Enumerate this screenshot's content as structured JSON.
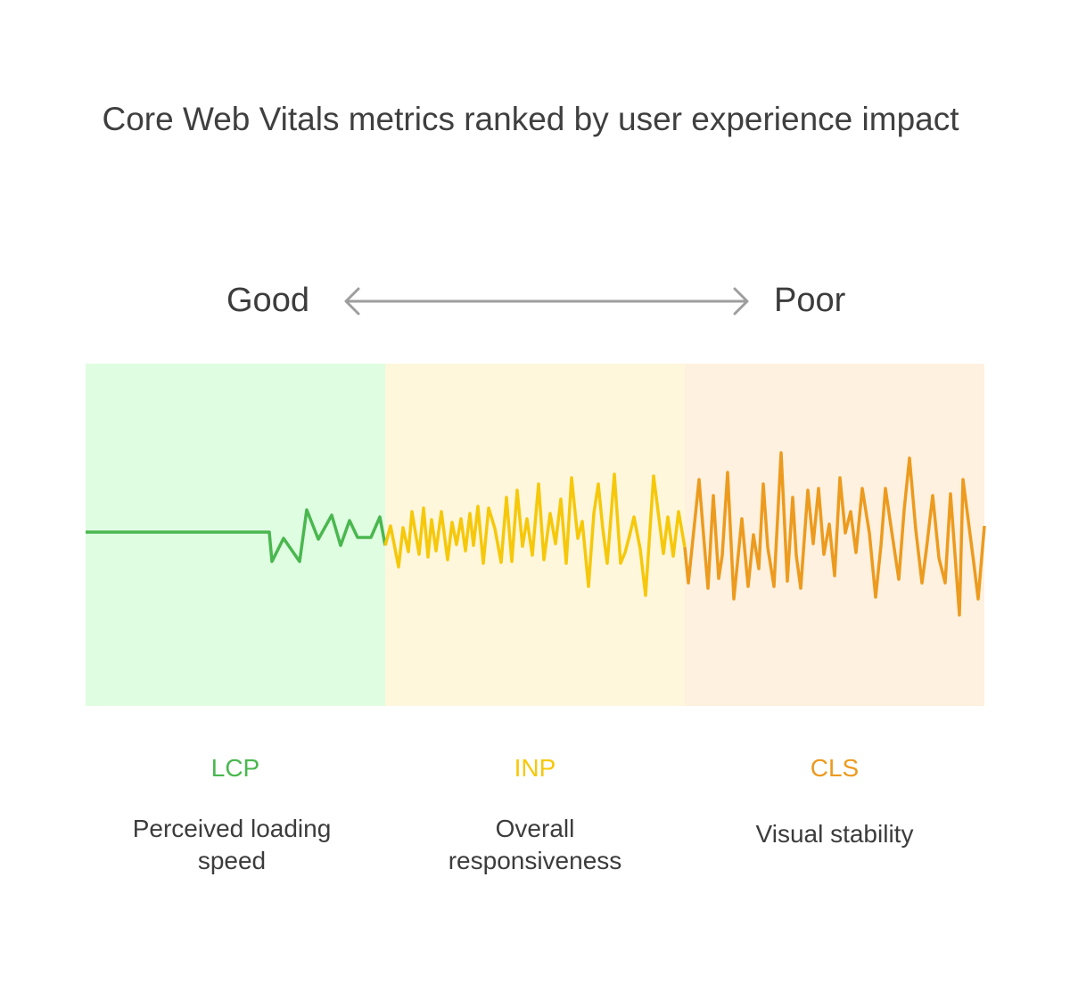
{
  "title": "Core Web Vitals metrics ranked by user experience impact",
  "scale": {
    "left_label": "Good",
    "right_label": "Poor"
  },
  "colors": {
    "good_band": "#dffde1",
    "mid_band": "#fff7dc",
    "poor_band": "#fff1df",
    "good_line": "#4ab74f",
    "mid_line": "#f6c80b",
    "poor_line": "#ec9b1f",
    "arrow": "#9e9e9e"
  },
  "metrics": [
    {
      "abbr": "LCP",
      "description": "Perceived loading speed",
      "color": "#4ab74f"
    },
    {
      "abbr": "INP",
      "description": "Overall responsiveness",
      "color": "#f6c80b"
    },
    {
      "abbr": "CLS",
      "description": "Visual stability",
      "color": "#ec9b1f"
    }
  ]
}
